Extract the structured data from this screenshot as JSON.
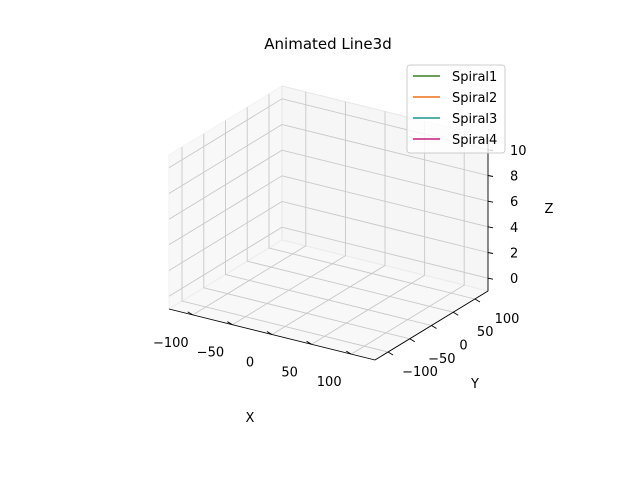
{
  "chart_data": {
    "type": "line",
    "title": "Animated Line3d",
    "xlabel": "X",
    "ylabel": "Y",
    "zlabel": "Z",
    "xlim": [
      -130,
      130
    ],
    "ylim": [
      -130,
      130
    ],
    "zlim": [
      -1,
      11
    ],
    "x_ticks": [
      -100,
      -50,
      0,
      50,
      100
    ],
    "y_ticks": [
      -100,
      -50,
      0,
      50,
      100
    ],
    "z_ticks": [
      0,
      2,
      4,
      6,
      8,
      10
    ],
    "x_tick_labels": [
      "−100",
      "−50",
      "0",
      "50",
      "100"
    ],
    "y_tick_labels": [
      "−100",
      "−50",
      "0",
      "50",
      "100"
    ],
    "z_tick_labels": [
      "0",
      "2",
      "4",
      "6",
      "8",
      "10"
    ],
    "grid": true,
    "legend": "top-right",
    "series": [
      {
        "name": "Spiral1",
        "color": "#3a7d26",
        "x": [],
        "y": [],
        "z": []
      },
      {
        "name": "Spiral2",
        "color": "#ec7014",
        "x": [],
        "y": [],
        "z": []
      },
      {
        "name": "Spiral3",
        "color": "#1f968b",
        "x": [],
        "y": [],
        "z": []
      },
      {
        "name": "Spiral4",
        "color": "#c51b7d",
        "x": [],
        "y": [],
        "z": []
      }
    ]
  }
}
